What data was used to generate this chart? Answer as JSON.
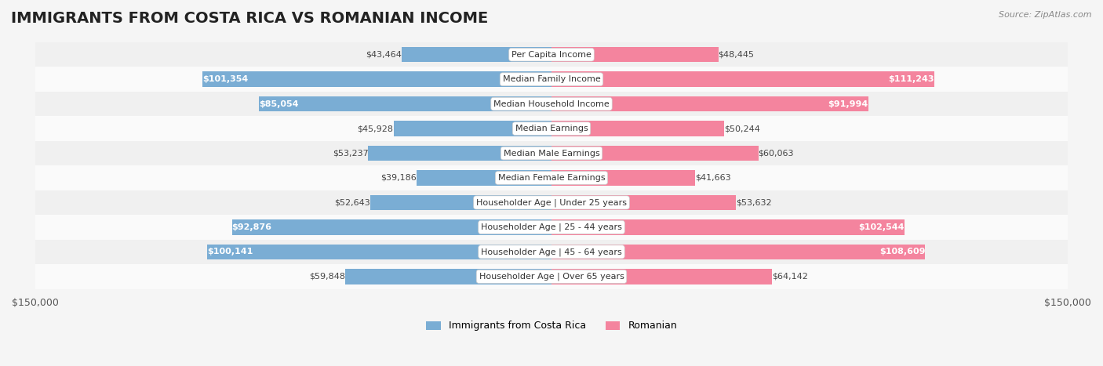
{
  "title": "IMMIGRANTS FROM COSTA RICA VS ROMANIAN INCOME",
  "source": "Source: ZipAtlas.com",
  "categories": [
    "Per Capita Income",
    "Median Family Income",
    "Median Household Income",
    "Median Earnings",
    "Median Male Earnings",
    "Median Female Earnings",
    "Householder Age | Under 25 years",
    "Householder Age | 25 - 44 years",
    "Householder Age | 45 - 64 years",
    "Householder Age | Over 65 years"
  ],
  "costa_rica_values": [
    43464,
    101354,
    85054,
    45928,
    53237,
    39186,
    52643,
    92876,
    100141,
    59848
  ],
  "romanian_values": [
    48445,
    111243,
    91994,
    50244,
    60063,
    41663,
    53632,
    102544,
    108609,
    64142
  ],
  "costa_rica_labels": [
    "$43,464",
    "$101,354",
    "$85,054",
    "$45,928",
    "$53,237",
    "$39,186",
    "$52,643",
    "$92,876",
    "$100,141",
    "$59,848"
  ],
  "romanian_labels": [
    "$48,445",
    "$111,243",
    "$91,994",
    "$50,244",
    "$60,063",
    "$41,663",
    "$53,632",
    "$102,544",
    "$108,609",
    "$64,142"
  ],
  "costa_rica_color": "#7aadd4",
  "romanian_color": "#f4849e",
  "costa_rica_color_dark": "#5b9ec9",
  "romanian_color_dark": "#f06080",
  "max_value": 150000,
  "bg_color": "#f5f5f5",
  "bar_bg_color": "#e8e8e8",
  "row_bg_even": "#f0f0f0",
  "row_bg_odd": "#fafafa",
  "label_bg": "#ffffff",
  "title_fontsize": 14,
  "tick_label_fontsize": 9,
  "bar_label_fontsize": 8,
  "legend_fontsize": 9,
  "value_threshold": 70000,
  "legend_left": "Immigrants from Costa Rica",
  "legend_right": "Romanian"
}
